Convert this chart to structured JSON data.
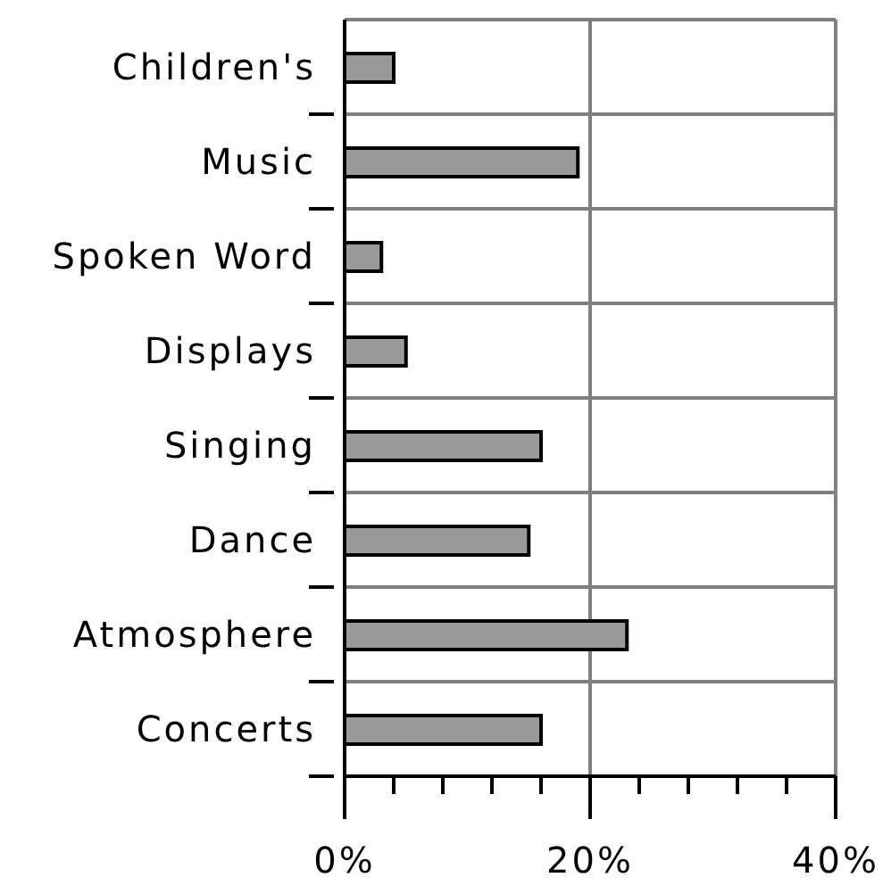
{
  "chart_data": {
    "type": "bar",
    "orientation": "horizontal",
    "categories": [
      "Children's",
      "Music",
      "Spoken Word",
      "Displays",
      "Singing",
      "Dance",
      "Atmosphere",
      "Concerts"
    ],
    "values": [
      4,
      19,
      3,
      5,
      16,
      15,
      23,
      16
    ],
    "color": "#999999",
    "xlim": [
      0,
      40
    ],
    "xticks": [
      {
        "value": 0,
        "label": "0%"
      },
      {
        "value": 4,
        "label": null
      },
      {
        "value": 8,
        "label": null
      },
      {
        "value": 12,
        "label": null
      },
      {
        "value": 16,
        "label": null
      },
      {
        "value": 20,
        "label": "20%"
      },
      {
        "value": 24,
        "label": null
      },
      {
        "value": 28,
        "label": null
      },
      {
        "value": 32,
        "label": null
      },
      {
        "value": 36,
        "label": null
      },
      {
        "value": 40,
        "label": "40%"
      }
    ],
    "grid": true
  }
}
